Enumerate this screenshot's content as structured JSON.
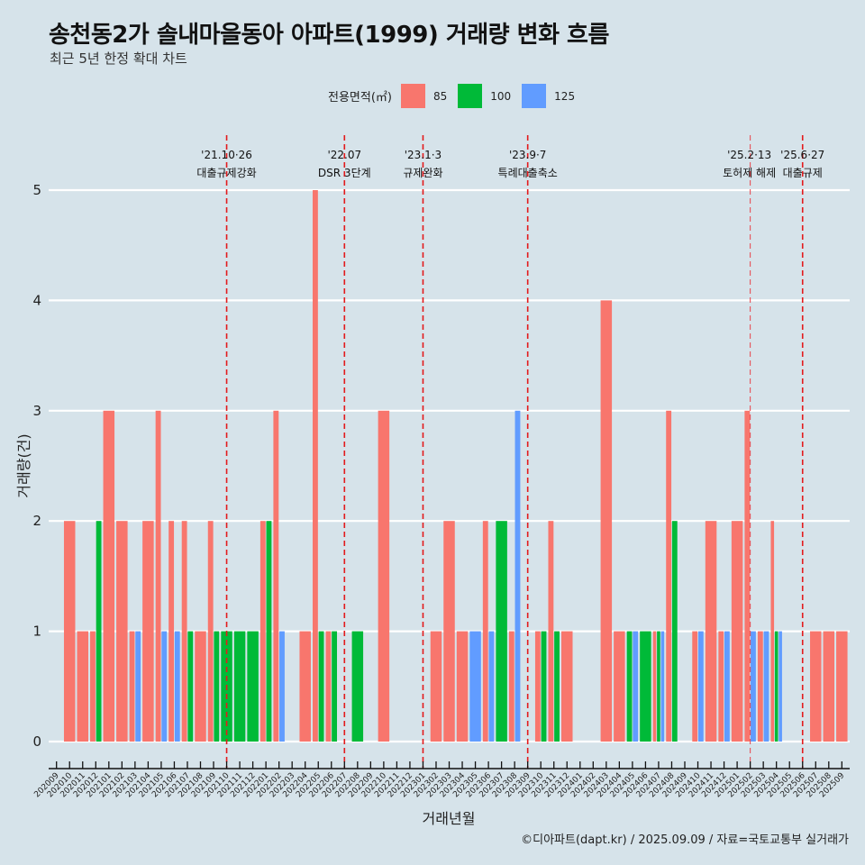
{
  "title": "송천동2가 솔내마을동아 아파트(1999) 거래량 변화 흐름",
  "subtitle": "최근 5년 한정 확대 차트",
  "caption": "©디아파트(dapt.kr) / 2025.09.09 / 자료=국토교통부 실거래가",
  "legend": {
    "title": "전용면적(㎡)",
    "items": [
      {
        "label": "85",
        "color": "#f8766d"
      },
      {
        "label": "100",
        "color": "#00ba38"
      },
      {
        "label": "125",
        "color": "#619cff"
      }
    ]
  },
  "chart_data": {
    "type": "bar",
    "title": "송천동2가 솔내마을동아 아파트(1999) 거래량 변화 흐름",
    "subtitle": "최근 5년 한정 확대 차트",
    "xlabel": "거래년월",
    "ylabel": "거래량(건)",
    "ylim": [
      0,
      5
    ],
    "yticks": [
      0,
      1,
      2,
      3,
      4,
      5
    ],
    "grid": true,
    "legend_position": "top",
    "position": "dodge",
    "categories": [
      "202009",
      "202010",
      "202011",
      "202012",
      "202101",
      "202102",
      "202103",
      "202104",
      "202105",
      "202106",
      "202107",
      "202108",
      "202109",
      "202110",
      "202111",
      "202112",
      "202201",
      "202202",
      "202203",
      "202204",
      "202205",
      "202206",
      "202207",
      "202208",
      "202209",
      "202210",
      "202211",
      "202212",
      "202301",
      "202302",
      "202303",
      "202304",
      "202305",
      "202306",
      "202307",
      "202308",
      "202309",
      "202310",
      "202311",
      "202312",
      "202401",
      "202402",
      "202403",
      "202404",
      "202405",
      "202406",
      "202407",
      "202408",
      "202409",
      "202410",
      "202411",
      "202412",
      "202501",
      "202502",
      "202503",
      "202504",
      "202505",
      "202506",
      "202507",
      "202508",
      "202509"
    ],
    "series": [
      {
        "name": "85",
        "color": "#f8766d",
        "values": [
          0,
          2,
          1,
          1,
          3,
          2,
          1,
          2,
          3,
          2,
          2,
          1,
          2,
          0,
          0,
          0,
          2,
          3,
          0,
          1,
          5,
          1,
          0,
          0,
          0,
          3,
          0,
          0,
          0,
          1,
          2,
          1,
          0,
          2,
          0,
          1,
          0,
          1,
          2,
          1,
          0,
          0,
          4,
          1,
          0,
          0,
          1,
          3,
          0,
          1,
          2,
          1,
          2,
          3,
          1,
          2,
          0,
          0,
          1,
          1,
          1
        ]
      },
      {
        "name": "100",
        "color": "#00ba38",
        "values": [
          0,
          0,
          0,
          2,
          0,
          0,
          0,
          0,
          0,
          0,
          1,
          0,
          1,
          1,
          1,
          1,
          2,
          0,
          0,
          0,
          1,
          1,
          0,
          1,
          0,
          0,
          0,
          0,
          0,
          0,
          0,
          0,
          0,
          0,
          2,
          0,
          0,
          1,
          1,
          0,
          0,
          0,
          0,
          0,
          1,
          1,
          1,
          2,
          0,
          0,
          0,
          0,
          0,
          0,
          0,
          1,
          0,
          0,
          0,
          0,
          0
        ]
      },
      {
        "name": "125",
        "color": "#619cff",
        "values": [
          0,
          0,
          0,
          0,
          0,
          0,
          1,
          0,
          1,
          1,
          0,
          0,
          0,
          0,
          0,
          0,
          0,
          1,
          0,
          0,
          0,
          0,
          0,
          0,
          0,
          0,
          0,
          0,
          0,
          0,
          0,
          0,
          1,
          1,
          0,
          3,
          0,
          0,
          0,
          0,
          0,
          0,
          0,
          0,
          1,
          0,
          1,
          0,
          0,
          1,
          0,
          1,
          0,
          1,
          1,
          1,
          0,
          0,
          0,
          0,
          0
        ]
      }
    ],
    "annotations": [
      {
        "x": "202110",
        "date": "'21.10·26",
        "label": "대출규제강화"
      },
      {
        "x": "202207",
        "date": "'22.07",
        "label": "DSR 3단계"
      },
      {
        "x": "202301",
        "date": "'23.1·3",
        "label": "규제완화"
      },
      {
        "x": "202309",
        "date": "'23.9·7",
        "label": "특례대출축소"
      },
      {
        "x": "202502",
        "date": "'25.2·13",
        "label": "토허제 해제"
      },
      {
        "x": "202506",
        "date": "'25.6·27",
        "label": "대출규제"
      }
    ]
  }
}
